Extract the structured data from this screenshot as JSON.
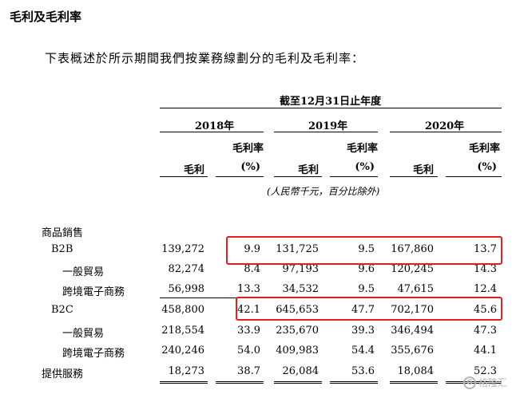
{
  "title": "毛利及毛利率",
  "intro": "下表概述於所示期間我們按業務線劃分的毛利及毛利率：",
  "period_header": "截至12月31日止年度",
  "years": [
    "2018年",
    "2019年",
    "2020年"
  ],
  "col_headers": {
    "gross_profit": "毛利",
    "margin_line1": "毛利率",
    "margin_line2": "(%)"
  },
  "unit_note": "(人民幣千元，百分比除外)",
  "rows": [
    {
      "label": "商品銷售",
      "values": [
        "",
        "",
        "",
        "",
        "",
        ""
      ]
    },
    {
      "label": "B2B",
      "values": [
        "139,272",
        "9.9",
        "131,725",
        "9.5",
        "167,860",
        "13.7"
      ]
    },
    {
      "label": "一般貿易",
      "values": [
        "82,274",
        "8.4",
        "97,193",
        "9.6",
        "120,245",
        "14.3"
      ]
    },
    {
      "label": "跨境電子商務",
      "values": [
        "56,998",
        "13.3",
        "34,532",
        "9.5",
        "47,615",
        "12.4"
      ]
    },
    {
      "label": "B2C",
      "values": [
        "458,800",
        "42.1",
        "645,653",
        "47.7",
        "702,170",
        "45.6"
      ]
    },
    {
      "label": "一般貿易",
      "values": [
        "218,554",
        "33.9",
        "235,670",
        "39.3",
        "346,494",
        "47.3"
      ]
    },
    {
      "label": "跨境電子商務",
      "values": [
        "240,246",
        "54.0",
        "409,983",
        "54.4",
        "355,676",
        "44.1"
      ]
    },
    {
      "label": "提供服務",
      "values": [
        "18,273",
        "38.7",
        "26,084",
        "53.6",
        "18,084",
        "52.3"
      ]
    }
  ],
  "watermark": {
    "icon": "gelonghui-logo-icon",
    "text": "格隆汇"
  },
  "colors": {
    "highlight": "#e0201b",
    "text": "#000000",
    "watermark": "#b5b5b5"
  }
}
